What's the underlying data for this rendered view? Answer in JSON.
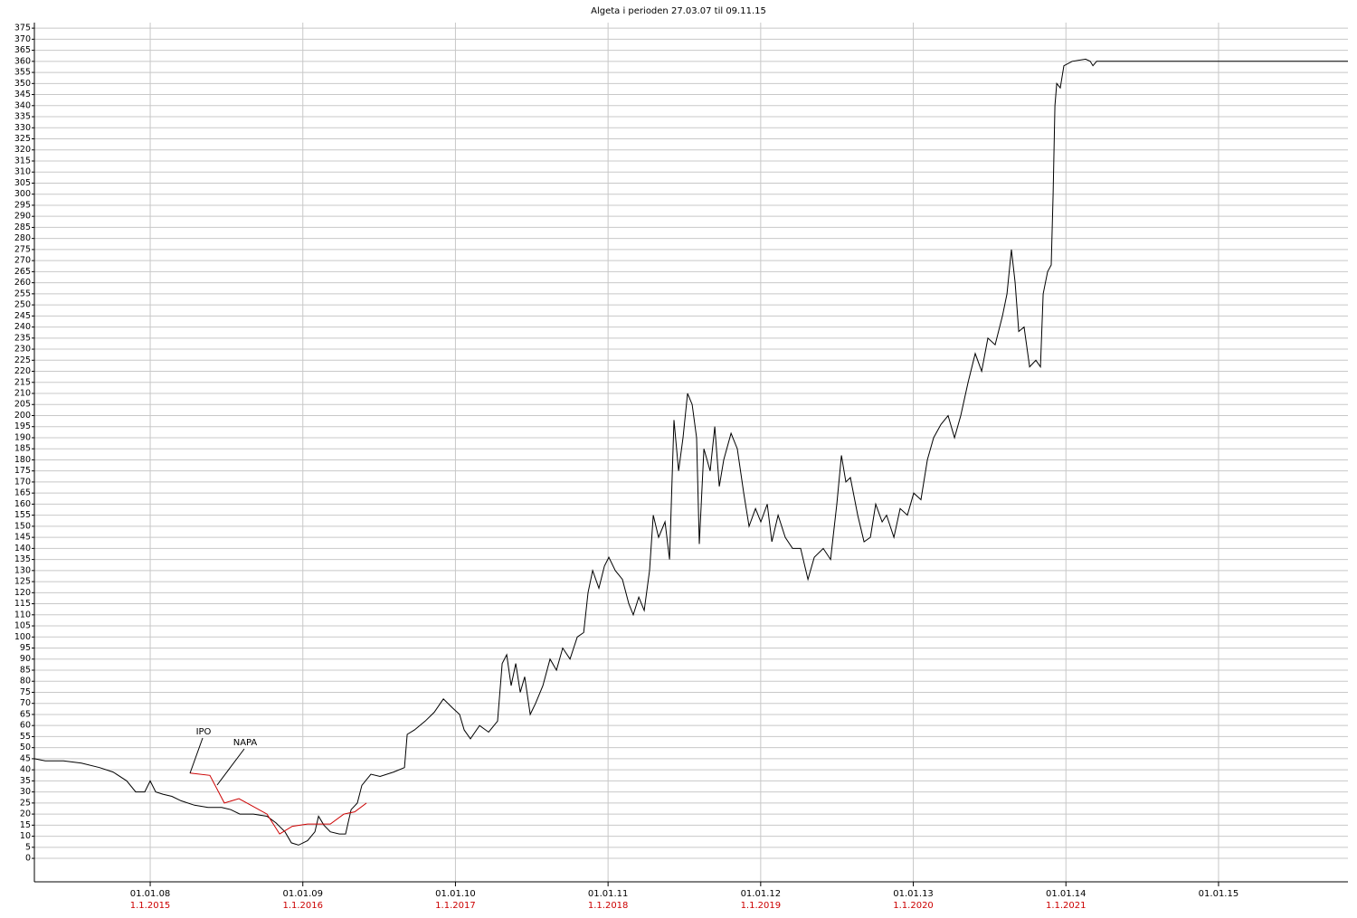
{
  "chart_data": {
    "type": "line",
    "title": "Algeta i perioden 27.03.07 til 09.11.15",
    "xlim": [
      2007.241,
      2015.848
    ],
    "ylim": [
      -10.6,
      377.5
    ],
    "grid": true,
    "xticks": [
      {
        "value": 2008,
        "label": "01.01.08"
      },
      {
        "value": 2009,
        "label": "01.01.09"
      },
      {
        "value": 2010,
        "label": "01.01.10"
      },
      {
        "value": 2011,
        "label": "01.01.11"
      },
      {
        "value": 2012,
        "label": "01.01.12"
      },
      {
        "value": 2013,
        "label": "01.01.13"
      },
      {
        "value": 2014,
        "label": "01.01.14"
      },
      {
        "value": 2015,
        "label": "01.01.15"
      }
    ],
    "xticks_secondary": [
      {
        "value": 2008,
        "label": "1.1.2015"
      },
      {
        "value": 2009,
        "label": "1.1.2016"
      },
      {
        "value": 2010,
        "label": "1.1.2017"
      },
      {
        "value": 2011,
        "label": "1.1.2018"
      },
      {
        "value": 2012,
        "label": "1.1.2019"
      },
      {
        "value": 2013,
        "label": "1.1.2020"
      },
      {
        "value": 2014,
        "label": "1.1.2021"
      }
    ],
    "secondary_color": "#cc0000",
    "yticks": [
      0,
      5,
      10,
      15,
      20,
      25,
      30,
      35,
      40,
      45,
      50,
      55,
      60,
      65,
      70,
      75,
      80,
      85,
      90,
      95,
      100,
      105,
      110,
      115,
      120,
      125,
      130,
      135,
      140,
      145,
      150,
      155,
      160,
      165,
      170,
      175,
      180,
      185,
      190,
      195,
      200,
      205,
      210,
      215,
      220,
      225,
      230,
      235,
      240,
      245,
      250,
      255,
      260,
      265,
      270,
      275,
      280,
      285,
      290,
      295,
      300,
      305,
      310,
      315,
      320,
      325,
      330,
      335,
      340,
      345,
      350,
      355,
      360,
      365,
      370,
      375
    ],
    "annotations": [
      "IPO",
      "NAPA"
    ],
    "series": [
      {
        "color": "#000000",
        "x": [
          2007.241,
          2007.312,
          2007.431,
          2007.549,
          2007.668,
          2007.757,
          2007.846,
          2007.905,
          2007.964,
          2008.0,
          2008.036,
          2008.083,
          2008.142,
          2008.202,
          2008.29,
          2008.379,
          2008.468,
          2008.528,
          2008.587,
          2008.676,
          2008.765,
          2008.824,
          2008.883,
          2008.925,
          2008.972,
          2009.031,
          2009.079,
          2009.103,
          2009.138,
          2009.18,
          2009.239,
          2009.28,
          2009.316,
          2009.357,
          2009.387,
          2009.446,
          2009.506,
          2009.595,
          2009.666,
          2009.684,
          2009.731,
          2009.802,
          2009.861,
          2009.921,
          2009.98,
          2010.027,
          2010.057,
          2010.098,
          2010.158,
          2010.217,
          2010.276,
          2010.306,
          2010.336,
          2010.365,
          2010.395,
          2010.425,
          2010.454,
          2010.49,
          2010.525,
          2010.573,
          2010.62,
          2010.662,
          2010.703,
          2010.751,
          2010.798,
          2010.84,
          2010.869,
          2010.899,
          2010.94,
          2010.976,
          2011.005,
          2011.047,
          2011.094,
          2011.136,
          2011.165,
          2011.201,
          2011.237,
          2011.272,
          2011.296,
          2011.331,
          2011.373,
          2011.403,
          2011.432,
          2011.462,
          2011.491,
          2011.521,
          2011.551,
          2011.58,
          2011.598,
          2011.628,
          2011.669,
          2011.699,
          2011.729,
          2011.758,
          2011.806,
          2011.847,
          2011.889,
          2011.924,
          2011.966,
          2012.001,
          2012.043,
          2012.073,
          2012.114,
          2012.161,
          2012.209,
          2012.262,
          2012.31,
          2012.351,
          2012.41,
          2012.458,
          2012.499,
          2012.529,
          2012.558,
          2012.588,
          2012.636,
          2012.677,
          2012.719,
          2012.754,
          2012.796,
          2012.825,
          2012.873,
          2012.914,
          2012.961,
          2013.003,
          2013.05,
          2013.092,
          2013.133,
          2013.181,
          2013.228,
          2013.27,
          2013.311,
          2013.359,
          2013.406,
          2013.448,
          2013.489,
          2013.536,
          2013.584,
          2013.614,
          2013.643,
          2013.667,
          2013.691,
          2013.726,
          2013.762,
          2013.803,
          2013.833,
          2013.851,
          2013.88,
          2013.904,
          2013.916,
          2013.928,
          2013.94,
          2013.963,
          2013.987,
          2014.041,
          2014.129,
          2014.159,
          2014.177,
          2014.201,
          2015.848
        ],
        "values": [
          45,
          44,
          44,
          43,
          41,
          39,
          35,
          30,
          30,
          35,
          30,
          29,
          28,
          26,
          24,
          23,
          23,
          22,
          20,
          20,
          19,
          16,
          12,
          7,
          6,
          8,
          12,
          19,
          15,
          12,
          11,
          11,
          22,
          25,
          33,
          38,
          37,
          39,
          41,
          56,
          58,
          62,
          66,
          72,
          68,
          65,
          58,
          54,
          60,
          57,
          62,
          88,
          92,
          78,
          88,
          75,
          82,
          65,
          70,
          78,
          90,
          85,
          95,
          90,
          100,
          102,
          120,
          130,
          122,
          132,
          136,
          130,
          126,
          115,
          110,
          118,
          112,
          130,
          155,
          145,
          152,
          135,
          198,
          175,
          190,
          210,
          205,
          190,
          142,
          185,
          175,
          195,
          168,
          180,
          192,
          185,
          165,
          150,
          158,
          152,
          160,
          143,
          155,
          145,
          140,
          140,
          126,
          136,
          140,
          135,
          160,
          182,
          170,
          172,
          155,
          143,
          145,
          160,
          152,
          155,
          145,
          158,
          155,
          165,
          162,
          180,
          190,
          196,
          200,
          190,
          200,
          215,
          228,
          220,
          235,
          232,
          245,
          255,
          275,
          260,
          238,
          240,
          222,
          225,
          222,
          255,
          265,
          268,
          300,
          340,
          350,
          348,
          358,
          360,
          361,
          360,
          358,
          360,
          360
        ]
      },
      {
        "color": "#cc0000",
        "x": [
          2008.261,
          2008.391,
          2008.486,
          2008.581,
          2008.765,
          2008.848,
          2008.931,
          2009.031,
          2009.18,
          2009.269,
          2009.34,
          2009.417
        ],
        "values": [
          38.5,
          37.5,
          25,
          27,
          20,
          11,
          14.5,
          15.5,
          15.5,
          20,
          21,
          25
        ]
      }
    ]
  }
}
